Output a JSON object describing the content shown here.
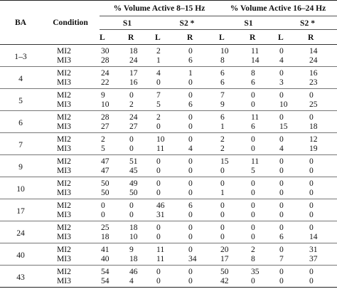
{
  "headers": {
    "ba": "BA",
    "condition": "Condition",
    "group_8_15": "% Volume Active 8–15 Hz",
    "group_16_24": "% Volume Active 16–24 Hz",
    "s1": "S1",
    "s2": "S2 *",
    "l": "L",
    "r": "R"
  },
  "rows": [
    {
      "ba": "1–3",
      "entries": [
        {
          "cond": "MI2",
          "v": [
            "30",
            "18",
            "2",
            "0",
            "10",
            "11",
            "0",
            "14"
          ]
        },
        {
          "cond": "MI3",
          "v": [
            "28",
            "24",
            "1",
            "6",
            "8",
            "14",
            "4",
            "24"
          ]
        }
      ]
    },
    {
      "ba": "4",
      "entries": [
        {
          "cond": "MI2",
          "v": [
            "24",
            "17",
            "4",
            "1",
            "6",
            "8",
            "0",
            "16"
          ]
        },
        {
          "cond": "MI3",
          "v": [
            "22",
            "16",
            "0",
            "0",
            "6",
            "6",
            "3",
            "23"
          ]
        }
      ]
    },
    {
      "ba": "5",
      "entries": [
        {
          "cond": "MI2",
          "v": [
            "9",
            "0",
            "7",
            "0",
            "7",
            "0",
            "0",
            "0"
          ]
        },
        {
          "cond": "MI3",
          "v": [
            "10",
            "2",
            "5",
            "6",
            "9",
            "0",
            "10",
            "25"
          ]
        }
      ]
    },
    {
      "ba": "6",
      "entries": [
        {
          "cond": "MI2",
          "v": [
            "28",
            "24",
            "2",
            "0",
            "6",
            "11",
            "0",
            "0"
          ]
        },
        {
          "cond": "MI3",
          "v": [
            "27",
            "27",
            "0",
            "0",
            "1",
            "6",
            "15",
            "18"
          ]
        }
      ]
    },
    {
      "ba": "7",
      "entries": [
        {
          "cond": "MI2",
          "v": [
            "2",
            "0",
            "10",
            "0",
            "2",
            "0",
            "0",
            "12"
          ]
        },
        {
          "cond": "MI3",
          "v": [
            "5",
            "0",
            "11",
            "4",
            "2",
            "0",
            "4",
            "19"
          ]
        }
      ]
    },
    {
      "ba": "9",
      "entries": [
        {
          "cond": "MI2",
          "v": [
            "47",
            "51",
            "0",
            "0",
            "15",
            "11",
            "0",
            "0"
          ]
        },
        {
          "cond": "MI3",
          "v": [
            "47",
            "45",
            "0",
            "0",
            "0",
            "5",
            "0",
            "0"
          ]
        }
      ]
    },
    {
      "ba": "10",
      "entries": [
        {
          "cond": "MI2",
          "v": [
            "50",
            "49",
            "0",
            "0",
            "0",
            "0",
            "0",
            "0"
          ]
        },
        {
          "cond": "MI3",
          "v": [
            "50",
            "50",
            "0",
            "0",
            "1",
            "0",
            "0",
            "0"
          ]
        }
      ]
    },
    {
      "ba": "17",
      "entries": [
        {
          "cond": "MI2",
          "v": [
            "0",
            "0",
            "46",
            "6",
            "0",
            "0",
            "0",
            "0"
          ]
        },
        {
          "cond": "MI3",
          "v": [
            "0",
            "0",
            "31",
            "0",
            "0",
            "0",
            "0",
            "0"
          ]
        }
      ]
    },
    {
      "ba": "24",
      "entries": [
        {
          "cond": "MI2",
          "v": [
            "25",
            "18",
            "0",
            "0",
            "0",
            "0",
            "0",
            "0"
          ]
        },
        {
          "cond": "MI3",
          "v": [
            "18",
            "10",
            "0",
            "0",
            "0",
            "0",
            "6",
            "14"
          ]
        }
      ]
    },
    {
      "ba": "40",
      "entries": [
        {
          "cond": "MI2",
          "v": [
            "41",
            "9",
            "11",
            "0",
            "20",
            "2",
            "0",
            "31"
          ]
        },
        {
          "cond": "MI3",
          "v": [
            "40",
            "18",
            "11",
            "34",
            "17",
            "8",
            "7",
            "37"
          ]
        }
      ]
    },
    {
      "ba": "43",
      "entries": [
        {
          "cond": "MI2",
          "v": [
            "54",
            "46",
            "0",
            "0",
            "50",
            "35",
            "0",
            "0"
          ]
        },
        {
          "cond": "MI3",
          "v": [
            "54",
            "4",
            "0",
            "0",
            "42",
            "0",
            "0",
            "0"
          ]
        }
      ]
    }
  ]
}
